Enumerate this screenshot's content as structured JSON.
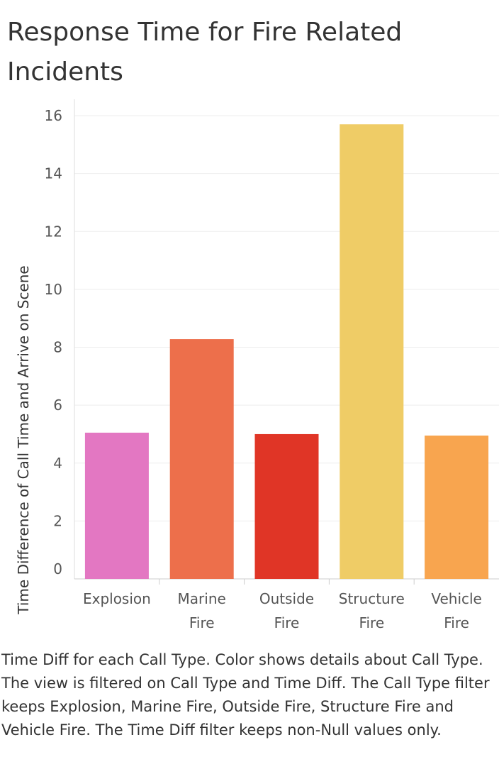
{
  "title": "Response Time for Fire Related Incidents",
  "caption": "Time Diff for each Call Type.  Color shows details about Call Type. The view is filtered on Call Type and Time Diff. The Call Type filter keeps Explosion, Marine Fire, Outside Fire, Structure Fire and Vehicle Fire. The Time Diff filter keeps non-Null values only.",
  "chart_data": {
    "type": "bar",
    "title": "Response Time for Fire Related Incidents",
    "xlabel": "",
    "ylabel": "Time Difference of Call Time and Arrive on Scene",
    "ylim": [
      0,
      16
    ],
    "yticks": [
      0,
      2,
      4,
      6,
      8,
      10,
      12,
      14,
      16
    ],
    "grid": true,
    "categories": [
      {
        "lines": [
          "Explosion"
        ],
        "value": 5.05,
        "color": "#e377c2"
      },
      {
        "lines": [
          "Marine",
          "Fire"
        ],
        "value": 8.28,
        "color": "#ed6f4b"
      },
      {
        "lines": [
          "Outside",
          "Fire"
        ],
        "value": 5.0,
        "color": "#e03526"
      },
      {
        "lines": [
          "Structure",
          "Fire"
        ],
        "value": 15.7,
        "color": "#efcc66"
      },
      {
        "lines": [
          "Vehicle",
          "Fire"
        ],
        "value": 4.95,
        "color": "#f8a54f"
      }
    ]
  }
}
